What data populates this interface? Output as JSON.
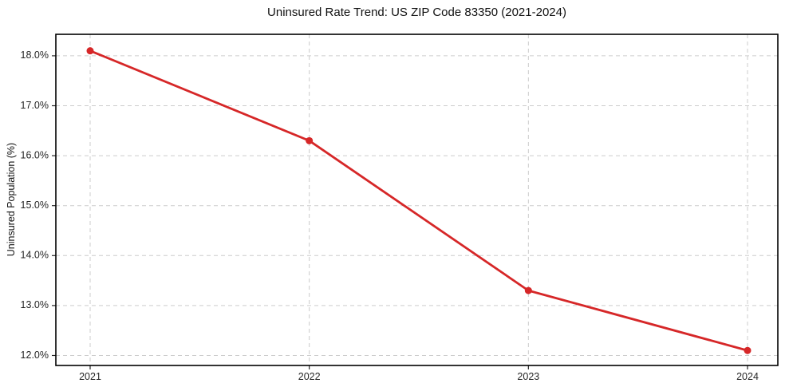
{
  "chart_data": {
    "type": "line",
    "title": "Uninsured Rate Trend: US ZIP Code 83350 (2021-2024)",
    "ylabel": "Uninsured Population (%)",
    "categories": [
      "2021",
      "2022",
      "2023",
      "2024"
    ],
    "values": [
      18.1,
      16.3,
      13.3,
      12.1
    ],
    "y_ticks": [
      12.0,
      13.0,
      14.0,
      15.0,
      16.0,
      17.0,
      18.0
    ],
    "y_tick_suffix": "%",
    "ylim": [
      11.8,
      18.43
    ],
    "grid": "dashed",
    "legend_position": "none",
    "line_color": "#d62728",
    "marker_color": "#d62728",
    "grid_color": "#cccccc",
    "axis_color": "#000000",
    "tick_color": "#262626",
    "tick_label_color": "#262626",
    "title_color": "#111111",
    "background_color": "#ffffff"
  }
}
